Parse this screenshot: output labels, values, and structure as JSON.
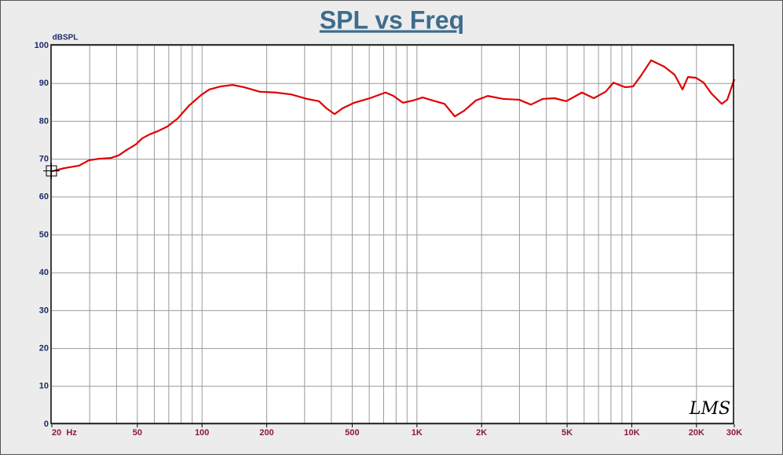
{
  "chart_data": {
    "type": "line",
    "title": "SPL vs Freq",
    "y_label": "dBSPL",
    "watermark": "LMS",
    "log_x": true,
    "grid": true,
    "color": "#e00000",
    "x": [
      20,
      22.7,
      26.8,
      29.7,
      33.1,
      37.6,
      40.9,
      44.5,
      49.2,
      52.7,
      57.3,
      62.3,
      68.9,
      76.9,
      87.2,
      98.9,
      108,
      122,
      139,
      157,
      186,
      220,
      260,
      308,
      350,
      380,
      414,
      450,
      511,
      604,
      715,
      778,
      861,
      960,
      1062,
      1185,
      1344,
      1500,
      1659,
      1882,
      2136,
      2526,
      2989,
      3392,
      3850,
      4368,
      4955,
      5863,
      6653,
      7550,
      8212,
      9316,
      10132,
      11020,
      12298,
      14188,
      15828,
      17218,
      18256,
      19866,
      21605,
      23508,
      26230,
      27824,
      30000
    ],
    "values": [
      66.8,
      67.6,
      68.3,
      69.7,
      70.1,
      70.3,
      71.0,
      72.4,
      73.9,
      75.5,
      76.6,
      77.4,
      78.6,
      80.7,
      84.2,
      86.9,
      88.4,
      89.2,
      89.6,
      89.0,
      87.8,
      87.6,
      87.1,
      85.9,
      85.3,
      83.4,
      81.9,
      83.4,
      84.9,
      86.1,
      87.6,
      86.7,
      84.9,
      85.5,
      86.3,
      85.5,
      84.6,
      81.3,
      82.8,
      85.5,
      86.7,
      85.9,
      85.7,
      84.4,
      85.9,
      86.1,
      85.3,
      87.6,
      86.1,
      87.8,
      90.2,
      89.0,
      89.2,
      92.0,
      96.1,
      94.4,
      92.3,
      88.4,
      91.7,
      91.5,
      90.2,
      87.3,
      84.6,
      85.7,
      91.1
    ],
    "xlim": [
      20,
      30000
    ],
    "ylim": [
      0,
      100
    ],
    "xticks": [
      {
        "value": 20,
        "label": "20  Hz"
      },
      50,
      100,
      200,
      500,
      {
        "value": 1000,
        "label": "1K"
      },
      {
        "value": 2000,
        "label": "2K"
      },
      {
        "value": 5000,
        "label": "5K"
      },
      {
        "value": 10000,
        "label": "10K"
      },
      {
        "value": 20000,
        "label": "20K"
      },
      {
        "value": 30000,
        "label": "30K"
      }
    ],
    "xgrid": [
      30,
      40,
      50,
      60,
      70,
      80,
      90,
      100,
      200,
      300,
      400,
      500,
      600,
      700,
      800,
      900,
      1000,
      2000,
      3000,
      4000,
      5000,
      6000,
      7000,
      8000,
      9000,
      10000,
      20000
    ],
    "yticks": [
      0,
      10,
      20,
      30,
      40,
      50,
      60,
      70,
      80,
      90,
      100
    ]
  }
}
